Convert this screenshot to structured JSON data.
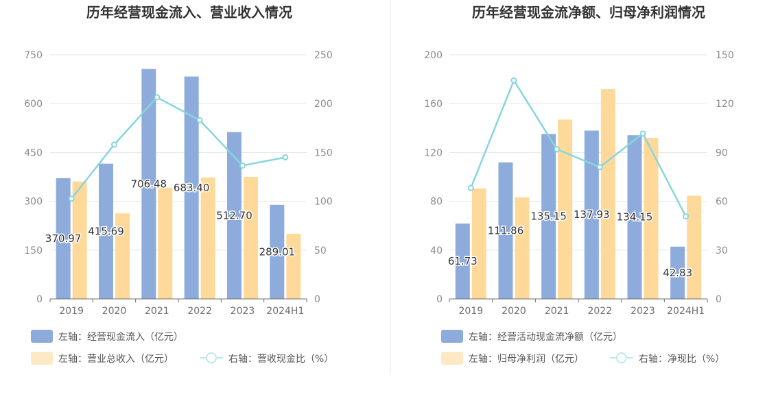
{
  "chart_data": [
    {
      "type": "bar",
      "title": "历年经营现金流入、营业收入情况",
      "categories": [
        "2019",
        "2020",
        "2021",
        "2022",
        "2023",
        "2024H1"
      ],
      "series": [
        {
          "name": "左轴：经营现金流入（亿元）",
          "axis": "left",
          "kind": "bar",
          "color": "#8eacdb",
          "values": [
            370.97,
            415.69,
            706.48,
            683.4,
            512.7,
            289.01
          ],
          "labels": [
            "370.97",
            "415.69",
            "706.48",
            "683.40",
            "512.70",
            "289.01"
          ]
        },
        {
          "name": "左轴：营业总收入（亿元）",
          "axis": "left",
          "kind": "bar",
          "color": "#fed99a",
          "values": [
            361,
            263,
            342,
            373,
            375,
            200
          ]
        },
        {
          "name": "右轴：营收现金比（%）",
          "axis": "right",
          "kind": "line",
          "color": "#86d6dc",
          "values": [
            102.7,
            158.1,
            206.5,
            183.0,
            136.6,
            145.0
          ]
        }
      ],
      "left_axis": {
        "min": 0,
        "max": 750,
        "ticks": [
          "0",
          "150",
          "300",
          "450",
          "600",
          "750"
        ]
      },
      "right_axis": {
        "min": 0,
        "max": 250,
        "ticks": [
          "0",
          "50",
          "100",
          "150",
          "200",
          "250"
        ]
      },
      "legend": [
        "左轴：经营现金流入（亿元）",
        "左轴：营业总收入（亿元）",
        "右轴：营收现金比（%）"
      ],
      "legend_position": "bottom-left",
      "grid": true
    },
    {
      "type": "bar",
      "title": "历年经营现金流净额、归母净利润情况",
      "categories": [
        "2019",
        "2020",
        "2021",
        "2022",
        "2023",
        "2024H1"
      ],
      "series": [
        {
          "name": "左轴：经营活动现金流净额（亿元）",
          "axis": "left",
          "kind": "bar",
          "color": "#8eacdb",
          "values": [
            61.73,
            111.86,
            135.15,
            137.93,
            134.15,
            42.83
          ],
          "labels": [
            "61.73",
            "111.86",
            "135.15",
            "137.93",
            "134.15",
            "42.83"
          ]
        },
        {
          "name": "左轴：归母净利润（亿元）",
          "axis": "left",
          "kind": "bar",
          "color": "#fed99a",
          "values": [
            90.5,
            83.3,
            147,
            172,
            132,
            84.5
          ]
        },
        {
          "name": "右轴：净现比（%）",
          "axis": "right",
          "kind": "line",
          "color": "#86d6dc",
          "values": [
            68.2,
            134.3,
            92.0,
            81.0,
            101.6,
            50.7
          ]
        }
      ],
      "left_axis": {
        "min": 0,
        "max": 200,
        "ticks": [
          "0",
          "40",
          "80",
          "120",
          "160",
          "200"
        ]
      },
      "right_axis": {
        "min": 0,
        "max": 150,
        "ticks": [
          "0",
          "30",
          "60",
          "90",
          "120",
          "150"
        ]
      },
      "legend": [
        "左轴：经营活动现金流净额（亿元）",
        "左轴：归母净利润（亿元）",
        "右轴：净现比（%）"
      ],
      "legend_position": "bottom-left",
      "grid": true
    }
  ]
}
